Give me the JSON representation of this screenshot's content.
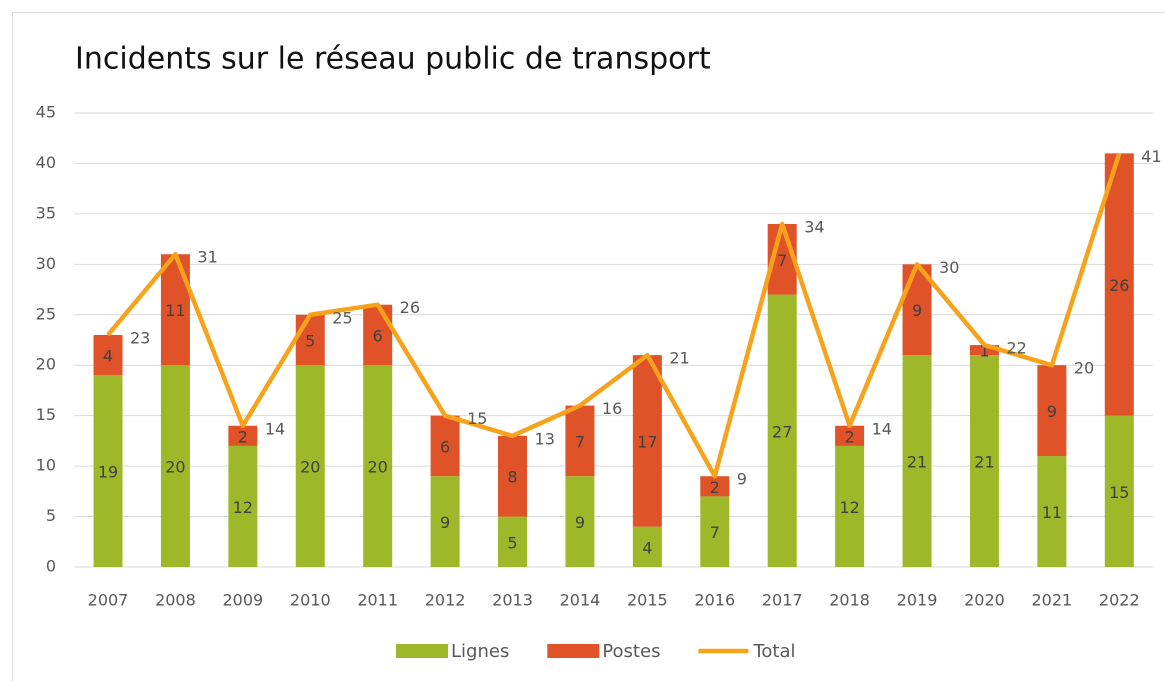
{
  "chart_data": {
    "type": "bar",
    "stacked": true,
    "title": "Incidents sur le réseau public de transport",
    "categories": [
      "2007",
      "2008",
      "2009",
      "2010",
      "2011",
      "2012",
      "2013",
      "2014",
      "2015",
      "2016",
      "2017",
      "2018",
      "2019",
      "2020",
      "2021",
      "2022"
    ],
    "series": [
      {
        "name": "Lignes",
        "color": "#9fb829",
        "values": [
          19,
          20,
          12,
          20,
          20,
          9,
          5,
          9,
          4,
          7,
          27,
          12,
          21,
          21,
          11,
          15
        ]
      },
      {
        "name": "Postes",
        "color": "#e05328",
        "values": [
          4,
          11,
          2,
          5,
          6,
          6,
          8,
          7,
          17,
          2,
          7,
          2,
          9,
          1,
          9,
          26
        ]
      },
      {
        "name": "Total",
        "type": "line",
        "color": "#f7a21b",
        "values": [
          23,
          31,
          14,
          25,
          26,
          15,
          13,
          16,
          21,
          9,
          34,
          14,
          30,
          22,
          20,
          41
        ]
      }
    ],
    "ylim": [
      0,
      45
    ],
    "yticks": [
      0,
      5,
      10,
      15,
      20,
      25,
      30,
      35,
      40,
      45
    ],
    "grid": true,
    "legend": "bottom"
  }
}
